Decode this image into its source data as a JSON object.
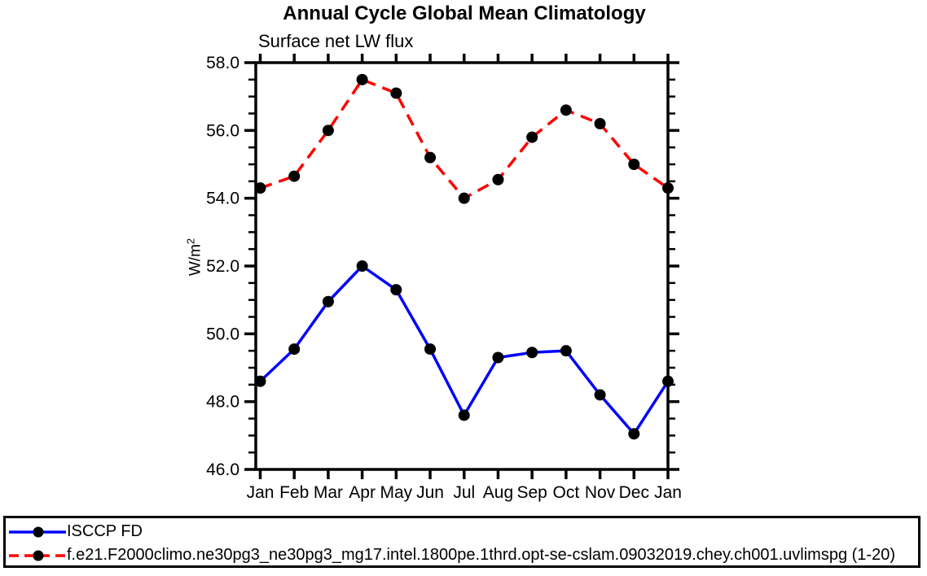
{
  "header": {
    "title": "Annual Cycle Global Mean Climatology",
    "subtitle": "Surface net LW flux"
  },
  "ylabel_base": "W/m",
  "ylabel_sup": "2",
  "colors": {
    "axis": "#000000",
    "marker": "#000000",
    "isccp_line": "#0000ff",
    "model_line": "#ff0000",
    "background": "#ffffff"
  },
  "chart_data": {
    "type": "line",
    "title": "Annual Cycle Global Mean Climatology",
    "subtitle": "Surface net LW flux",
    "xlabel": "",
    "ylabel": "W/m²",
    "categories": [
      "Jan",
      "Feb",
      "Mar",
      "Apr",
      "May",
      "Jun",
      "Jul",
      "Aug",
      "Sep",
      "Oct",
      "Nov",
      "Dec",
      "Jan"
    ],
    "ylim": [
      46.0,
      58.0
    ],
    "yticks": [
      46,
      48,
      50,
      52,
      54,
      56,
      58
    ],
    "ytick_labels": [
      "46.0",
      "48.0",
      "50.0",
      "52.0",
      "54.0",
      "56.0",
      "58.0"
    ],
    "ytick_minor_step": 0.5,
    "grid": false,
    "legend_position": "bottom-box-outside",
    "series": [
      {
        "name": "ISCCP FD",
        "color": "#0000ff",
        "line_style": "solid",
        "marker": "filled-circle",
        "marker_color": "#000000",
        "values": [
          48.6,
          49.55,
          50.95,
          52.0,
          51.3,
          49.55,
          47.6,
          49.3,
          49.45,
          49.5,
          48.2,
          47.05,
          48.6
        ]
      },
      {
        "name": "f.e21.F2000climo.ne30pg3_ne30pg3_mg17.intel.1800pe.1thrd.opt-se-cslam.09032019.chey.ch001.uvlimspg (1-20)",
        "color": "#ff0000",
        "line_style": "dashed",
        "marker": "filled-circle",
        "marker_color": "#000000",
        "values": [
          54.3,
          54.65,
          56.0,
          57.5,
          57.1,
          55.2,
          54.0,
          54.55,
          55.8,
          56.6,
          56.2,
          55.0,
          54.3
        ]
      }
    ]
  }
}
